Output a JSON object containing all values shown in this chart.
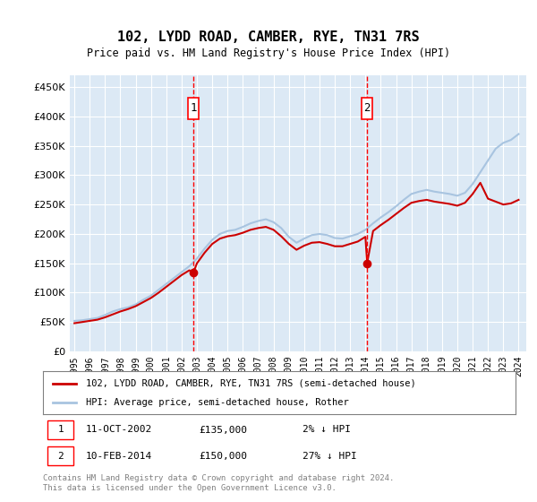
{
  "title": "102, LYDD ROAD, CAMBER, RYE, TN31 7RS",
  "subtitle": "Price paid vs. HM Land Registry's House Price Index (HPI)",
  "legend_line1": "102, LYDD ROAD, CAMBER, RYE, TN31 7RS (semi-detached house)",
  "legend_line2": "HPI: Average price, semi-detached house, Rother",
  "footer": "Contains HM Land Registry data © Crown copyright and database right 2024.\nThis data is licensed under the Open Government Licence v3.0.",
  "sale1_date": "11-OCT-2002",
  "sale1_price": 135000,
  "sale1_label": "1",
  "sale1_pct": "2% ↓ HPI",
  "sale2_date": "10-FEB-2014",
  "sale2_price": 150000,
  "sale2_label": "2",
  "sale2_pct": "27% ↓ HPI",
  "sale1_year": 2002.78,
  "sale2_year": 2014.11,
  "hpi_color": "#a8c4e0",
  "price_color": "#cc0000",
  "background_color": "#dce9f5",
  "plot_bg": "#dce9f5",
  "ylim": [
    0,
    470000
  ],
  "xlim_start": 1995.0,
  "xlim_end": 2024.5,
  "hpi_data_x": [
    1995.0,
    1995.5,
    1996.0,
    1996.5,
    1997.0,
    1997.5,
    1998.0,
    1998.5,
    1999.0,
    1999.5,
    2000.0,
    2000.5,
    2001.0,
    2001.5,
    2002.0,
    2002.5,
    2003.0,
    2003.5,
    2004.0,
    2004.5,
    2005.0,
    2005.5,
    2006.0,
    2006.5,
    2007.0,
    2007.5,
    2008.0,
    2008.5,
    2009.0,
    2009.5,
    2010.0,
    2010.5,
    2011.0,
    2011.5,
    2012.0,
    2012.5,
    2013.0,
    2013.5,
    2014.0,
    2014.5,
    2015.0,
    2015.5,
    2016.0,
    2016.5,
    2017.0,
    2017.5,
    2018.0,
    2018.5,
    2019.0,
    2019.5,
    2020.0,
    2020.5,
    2021.0,
    2021.5,
    2022.0,
    2022.5,
    2023.0,
    2023.5,
    2024.0
  ],
  "hpi_data_y": [
    52000,
    53000,
    55000,
    57000,
    62000,
    68000,
    72000,
    75000,
    80000,
    88000,
    95000,
    105000,
    115000,
    125000,
    135000,
    145000,
    158000,
    175000,
    190000,
    200000,
    205000,
    207000,
    212000,
    218000,
    222000,
    225000,
    220000,
    210000,
    195000,
    185000,
    192000,
    198000,
    200000,
    198000,
    193000,
    192000,
    196000,
    200000,
    207000,
    218000,
    228000,
    237000,
    247000,
    258000,
    268000,
    272000,
    275000,
    272000,
    270000,
    268000,
    265000,
    270000,
    285000,
    305000,
    325000,
    345000,
    355000,
    360000,
    370000
  ],
  "price_data_x": [
    1995.0,
    1995.5,
    1996.0,
    1996.5,
    1997.0,
    1997.5,
    1998.0,
    1998.5,
    1999.0,
    1999.5,
    2000.0,
    2000.5,
    2001.0,
    2001.5,
    2002.0,
    2002.5,
    2002.78,
    2003.0,
    2003.5,
    2004.0,
    2004.5,
    2005.0,
    2005.5,
    2006.0,
    2006.5,
    2007.0,
    2007.5,
    2008.0,
    2008.5,
    2009.0,
    2009.5,
    2010.0,
    2010.5,
    2011.0,
    2011.5,
    2012.0,
    2012.5,
    2013.0,
    2013.5,
    2014.0,
    2014.11,
    2014.5,
    2015.0,
    2015.5,
    2016.0,
    2016.5,
    2017.0,
    2017.5,
    2018.0,
    2018.5,
    2019.0,
    2019.5,
    2020.0,
    2020.5,
    2021.0,
    2021.5,
    2022.0,
    2022.5,
    2023.0,
    2023.5,
    2024.0
  ],
  "price_data_y": [
    48000,
    50000,
    52000,
    54000,
    58000,
    63000,
    68000,
    72000,
    77000,
    84000,
    91000,
    100000,
    110000,
    120000,
    130000,
    138000,
    135000,
    150000,
    168000,
    183000,
    192000,
    196000,
    198000,
    202000,
    207000,
    210000,
    212000,
    207000,
    196000,
    183000,
    173000,
    180000,
    185000,
    186000,
    183000,
    179000,
    179000,
    183000,
    187000,
    195000,
    150000,
    205000,
    215000,
    224000,
    234000,
    244000,
    253000,
    256000,
    258000,
    255000,
    253000,
    251000,
    248000,
    253000,
    268000,
    287000,
    260000,
    255000,
    250000,
    252000,
    258000
  ],
  "xtick_years": [
    1995,
    1996,
    1997,
    1998,
    1999,
    2000,
    2001,
    2002,
    2003,
    2004,
    2005,
    2006,
    2007,
    2008,
    2009,
    2010,
    2011,
    2012,
    2013,
    2014,
    2015,
    2016,
    2017,
    2018,
    2019,
    2020,
    2021,
    2022,
    2023,
    2024
  ]
}
